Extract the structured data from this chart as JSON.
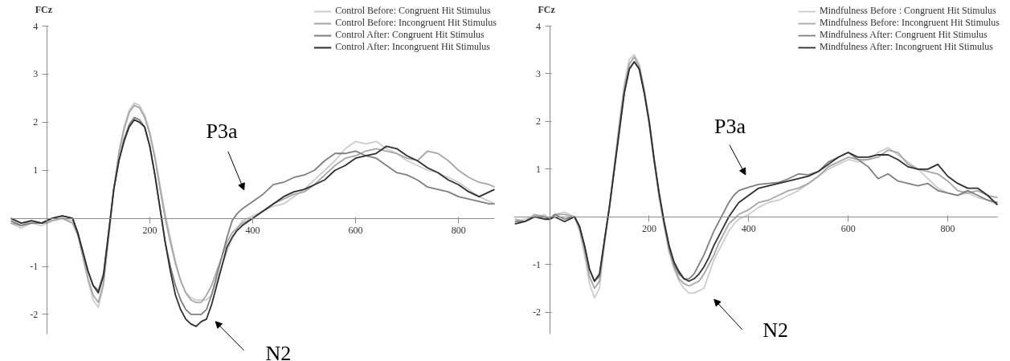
{
  "chart_data": [
    {
      "type": "line",
      "ylabel": "FCz",
      "xlim": [
        -70,
        870
      ],
      "ylim": [
        -2.41,
        4
      ],
      "xticks": [
        200,
        400,
        600,
        800
      ],
      "yticks": [
        -2,
        -1,
        1,
        2,
        3,
        4
      ],
      "legend": "top right",
      "annotations": [
        "P3a",
        "N2"
      ],
      "x": [
        -70,
        -50,
        -30,
        -10,
        0,
        10,
        30,
        50,
        60,
        70,
        80,
        90,
        100,
        110,
        120,
        130,
        140,
        150,
        160,
        170,
        180,
        190,
        200,
        210,
        220,
        230,
        240,
        250,
        260,
        270,
        280,
        290,
        300,
        310,
        320,
        330,
        340,
        350,
        360,
        370,
        380,
        400,
        420,
        440,
        460,
        480,
        500,
        520,
        540,
        560,
        580,
        600,
        620,
        640,
        660,
        680,
        700,
        720,
        740,
        760,
        780,
        800,
        820,
        840,
        860,
        870
      ],
      "series": [
        {
          "name": "Control Before: Congruent Hit Stimulus",
          "color": "#cccccc",
          "values": [
            -0.1,
            -0.2,
            -0.1,
            -0.15,
            -0.1,
            -0.05,
            0.0,
            -0.05,
            -0.3,
            -0.8,
            -1.3,
            -1.7,
            -1.85,
            -1.4,
            -0.4,
            0.6,
            1.4,
            1.9,
            2.25,
            2.4,
            2.35,
            2.15,
            1.8,
            1.3,
            0.7,
            0.1,
            -0.4,
            -0.9,
            -1.3,
            -1.55,
            -1.65,
            -1.7,
            -1.7,
            -1.7,
            -1.6,
            -1.3,
            -1.0,
            -0.7,
            -0.4,
            -0.2,
            -0.05,
            0.05,
            0.15,
            0.25,
            0.3,
            0.45,
            0.6,
            0.8,
            1.0,
            1.2,
            1.45,
            1.6,
            1.55,
            1.6,
            1.45,
            1.35,
            1.2,
            1.1,
            1.0,
            0.95,
            0.85,
            0.75,
            0.6,
            0.45,
            0.35,
            0.3
          ]
        },
        {
          "name": "Control Before: Incongruent Hit Stimulus",
          "color": "#a6a6a6",
          "values": [
            -0.1,
            -0.15,
            -0.05,
            -0.1,
            -0.1,
            -0.05,
            0.0,
            -0.1,
            -0.35,
            -0.8,
            -1.25,
            -1.6,
            -1.75,
            -1.35,
            -0.4,
            0.6,
            1.35,
            1.85,
            2.2,
            2.35,
            2.3,
            2.1,
            1.75,
            1.25,
            0.6,
            0.0,
            -0.5,
            -0.95,
            -1.3,
            -1.55,
            -1.7,
            -1.75,
            -1.75,
            -1.6,
            -1.4,
            -1.1,
            -0.8,
            -0.5,
            -0.3,
            -0.2,
            -0.1,
            0.0,
            0.15,
            0.3,
            0.4,
            0.5,
            0.55,
            0.7,
            0.9,
            1.1,
            1.25,
            1.3,
            1.4,
            1.45,
            1.4,
            1.35,
            1.25,
            1.2,
            1.4,
            1.35,
            1.2,
            1.0,
            0.85,
            0.75,
            0.7,
            0.65
          ]
        },
        {
          "name": "Control After: Congruent Hit Stimulus",
          "color": "#7f7f7f",
          "values": [
            -0.05,
            -0.15,
            -0.1,
            -0.1,
            -0.05,
            0.0,
            0.05,
            0.0,
            -0.3,
            -0.7,
            -1.1,
            -1.4,
            -1.5,
            -1.15,
            -0.3,
            0.6,
            1.2,
            1.65,
            1.95,
            2.1,
            2.05,
            1.9,
            1.5,
            0.9,
            0.2,
            -0.5,
            -1.0,
            -1.4,
            -1.7,
            -1.9,
            -2.0,
            -2.0,
            -2.0,
            -1.9,
            -1.6,
            -1.2,
            -0.8,
            -0.4,
            -0.05,
            0.1,
            0.2,
            0.35,
            0.5,
            0.7,
            0.75,
            0.85,
            0.9,
            1.0,
            1.2,
            1.35,
            1.35,
            1.4,
            1.3,
            1.25,
            1.1,
            0.95,
            0.9,
            0.8,
            0.65,
            0.6,
            0.55,
            0.45,
            0.4,
            0.35,
            0.3,
            0.3
          ]
        },
        {
          "name": "Control After: Incongruent Hit Stimulus",
          "color": "#2e2e2e",
          "values": [
            0.0,
            -0.1,
            -0.05,
            -0.1,
            -0.05,
            0.0,
            0.05,
            0.0,
            -0.3,
            -0.7,
            -1.1,
            -1.4,
            -1.55,
            -1.2,
            -0.3,
            0.6,
            1.2,
            1.6,
            1.9,
            2.05,
            2.0,
            1.9,
            1.5,
            0.9,
            0.2,
            -0.5,
            -1.1,
            -1.6,
            -1.9,
            -2.1,
            -2.2,
            -2.25,
            -2.15,
            -2.1,
            -1.8,
            -1.4,
            -1.0,
            -0.6,
            -0.4,
            -0.25,
            -0.15,
            0.0,
            0.15,
            0.3,
            0.45,
            0.55,
            0.6,
            0.7,
            0.8,
            1.0,
            1.1,
            1.25,
            1.3,
            1.35,
            1.5,
            1.45,
            1.3,
            1.2,
            1.05,
            0.95,
            0.8,
            0.7,
            0.55,
            0.45,
            0.55,
            0.6
          ]
        }
      ]
    },
    {
      "type": "line",
      "ylabel": "FCz",
      "xlim": [
        -72,
        900
      ],
      "ylim": [
        -2.46,
        4
      ],
      "xticks": [
        200,
        400,
        600,
        800
      ],
      "yticks": [
        -2,
        -1,
        1,
        2,
        3,
        4
      ],
      "legend": "top right",
      "annotations": [
        "P3a",
        "N2"
      ],
      "x": [
        -70,
        -50,
        -30,
        -10,
        0,
        10,
        30,
        50,
        60,
        70,
        80,
        90,
        100,
        110,
        120,
        130,
        140,
        150,
        160,
        170,
        180,
        190,
        200,
        210,
        220,
        230,
        240,
        250,
        260,
        270,
        280,
        290,
        300,
        310,
        320,
        330,
        340,
        350,
        360,
        370,
        380,
        400,
        420,
        440,
        460,
        480,
        500,
        520,
        540,
        560,
        580,
        600,
        620,
        640,
        660,
        680,
        700,
        720,
        740,
        760,
        780,
        800,
        820,
        840,
        860,
        880,
        900
      ],
      "series": [
        {
          "name": "Mindfulness Before : Congruent Hit Stimulus",
          "color": "#cccccc",
          "values": [
            -0.1,
            -0.05,
            0.0,
            0.05,
            -0.05,
            0.05,
            0.1,
            0.0,
            -0.3,
            -0.8,
            -1.4,
            -1.7,
            -1.5,
            -0.6,
            0.2,
            1.1,
            2.0,
            2.8,
            3.3,
            3.4,
            3.2,
            2.7,
            2.0,
            1.2,
            0.4,
            -0.2,
            -0.75,
            -1.1,
            -1.35,
            -1.5,
            -1.6,
            -1.6,
            -1.55,
            -1.5,
            -1.2,
            -0.9,
            -0.7,
            -0.5,
            -0.3,
            -0.15,
            -0.05,
            0.05,
            0.2,
            0.3,
            0.35,
            0.45,
            0.55,
            0.7,
            0.85,
            1.0,
            1.1,
            1.2,
            1.15,
            1.2,
            1.35,
            1.45,
            1.3,
            1.15,
            1.0,
            0.8,
            0.6,
            0.5,
            0.45,
            0.5,
            0.4,
            0.35,
            0.25
          ]
        },
        {
          "name": "Mindfulness Before: Incongruent Hit Stimulus",
          "color": "#a6a6a6",
          "values": [
            -0.05,
            -0.1,
            0.05,
            0.0,
            -0.05,
            0.05,
            0.05,
            0.0,
            -0.25,
            -0.7,
            -1.25,
            -1.5,
            -1.35,
            -0.55,
            0.2,
            1.05,
            1.9,
            2.7,
            3.2,
            3.35,
            3.15,
            2.65,
            2.0,
            1.2,
            0.45,
            -0.15,
            -0.7,
            -1.05,
            -1.3,
            -1.4,
            -1.45,
            -1.4,
            -1.35,
            -1.2,
            -1.0,
            -0.8,
            -0.55,
            -0.35,
            -0.15,
            -0.05,
            0.05,
            0.15,
            0.3,
            0.35,
            0.45,
            0.55,
            0.6,
            0.7,
            0.85,
            1.05,
            1.15,
            1.25,
            1.2,
            1.2,
            1.25,
            1.4,
            1.35,
            1.1,
            1.0,
            0.95,
            0.9,
            0.75,
            0.55,
            0.5,
            0.55,
            0.45,
            0.4
          ]
        },
        {
          "name": "Mindfulness After: Congruent Hit Stimulus",
          "color": "#7f7f7f",
          "values": [
            -0.1,
            -0.1,
            0.0,
            0.0,
            -0.05,
            0.05,
            -0.05,
            0.0,
            -0.2,
            -0.6,
            -1.1,
            -1.35,
            -1.25,
            -0.5,
            0.2,
            1.0,
            1.8,
            2.6,
            3.1,
            3.25,
            3.1,
            2.6,
            1.95,
            1.15,
            0.45,
            -0.15,
            -0.65,
            -1.0,
            -1.2,
            -1.3,
            -1.3,
            -1.2,
            -1.0,
            -0.8,
            -0.55,
            -0.3,
            -0.1,
            0.1,
            0.3,
            0.45,
            0.55,
            0.62,
            0.68,
            0.7,
            0.72,
            0.8,
            0.9,
            0.88,
            0.95,
            1.15,
            1.25,
            1.35,
            1.2,
            1.05,
            0.8,
            0.9,
            0.75,
            0.7,
            0.65,
            0.7,
            0.55,
            0.5,
            0.45,
            0.55,
            0.45,
            0.35,
            0.3
          ]
        },
        {
          "name": "Mindfulness After: Incongruent Hit Stimulus",
          "color": "#2e2e2e",
          "values": [
            -0.15,
            -0.1,
            0.0,
            -0.05,
            -0.05,
            0.0,
            -0.1,
            0.0,
            -0.2,
            -0.6,
            -1.1,
            -1.35,
            -1.2,
            -0.5,
            0.2,
            1.0,
            1.8,
            2.6,
            3.1,
            3.25,
            3.1,
            2.6,
            2.0,
            1.2,
            0.5,
            -0.1,
            -0.6,
            -0.95,
            -1.15,
            -1.3,
            -1.35,
            -1.3,
            -1.2,
            -1.05,
            -0.85,
            -0.6,
            -0.4,
            -0.2,
            0.0,
            0.15,
            0.3,
            0.45,
            0.6,
            0.65,
            0.7,
            0.75,
            0.8,
            0.85,
            0.95,
            1.1,
            1.25,
            1.35,
            1.25,
            1.25,
            1.3,
            1.3,
            1.2,
            1.05,
            1.0,
            1.0,
            1.1,
            0.85,
            0.7,
            0.6,
            0.6,
            0.45,
            0.25
          ]
        }
      ]
    }
  ]
}
